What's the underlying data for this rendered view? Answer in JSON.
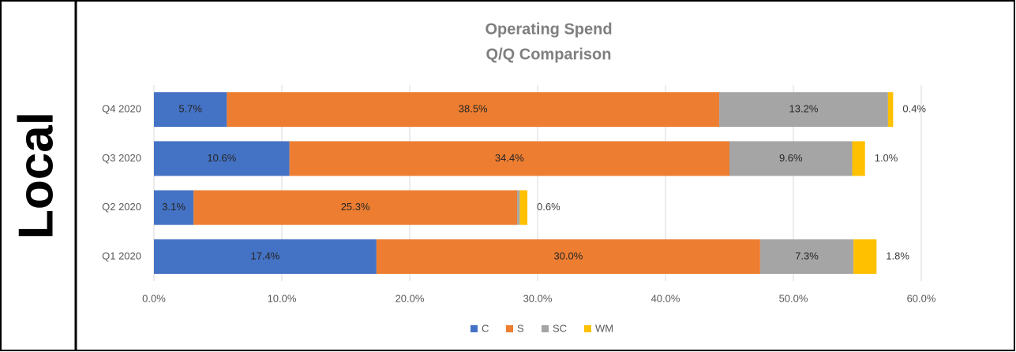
{
  "panel_label": "Local",
  "chart_data": {
    "type": "stacked-barh",
    "title": "Operating Spend",
    "subtitle": "Q/Q Comparison",
    "categories": [
      "Q4 2020",
      "Q3 2020",
      "Q2 2020",
      "Q1 2020"
    ],
    "series": [
      {
        "name": "C",
        "color": "#4472c4",
        "values": [
          5.7,
          10.6,
          3.1,
          17.4
        ],
        "value_labels": [
          "5.7%",
          "10.6%",
          "3.1%",
          "17.4%"
        ]
      },
      {
        "name": "S",
        "color": "#ed7d31",
        "values": [
          38.5,
          34.4,
          25.3,
          30.0
        ],
        "value_labels": [
          "38.5%",
          "34.4%",
          "25.3%",
          "30.0%"
        ]
      },
      {
        "name": "SC",
        "color": "#a5a5a5",
        "values": [
          13.2,
          9.6,
          0.2,
          7.3
        ],
        "value_labels": [
          "13.2%",
          "9.6%",
          null,
          "7.3%"
        ]
      },
      {
        "name": "WM",
        "color": "#ffc000",
        "values": [
          0.4,
          1.0,
          0.6,
          1.8
        ],
        "value_labels": [
          "0.4%",
          "1.0%",
          "0.6%",
          "1.8%"
        ]
      }
    ],
    "xlim": [
      0,
      60
    ],
    "xticks": [
      {
        "value": 0,
        "label": "0.0%"
      },
      {
        "value": 10,
        "label": "10.0%"
      },
      {
        "value": 20,
        "label": "20.0%"
      },
      {
        "value": 30,
        "label": "30.0%"
      },
      {
        "value": 40,
        "label": "40.0%"
      },
      {
        "value": 50,
        "label": "50.0%"
      },
      {
        "value": 60,
        "label": "60.0%"
      }
    ],
    "grid": true,
    "legend": "bottom"
  }
}
